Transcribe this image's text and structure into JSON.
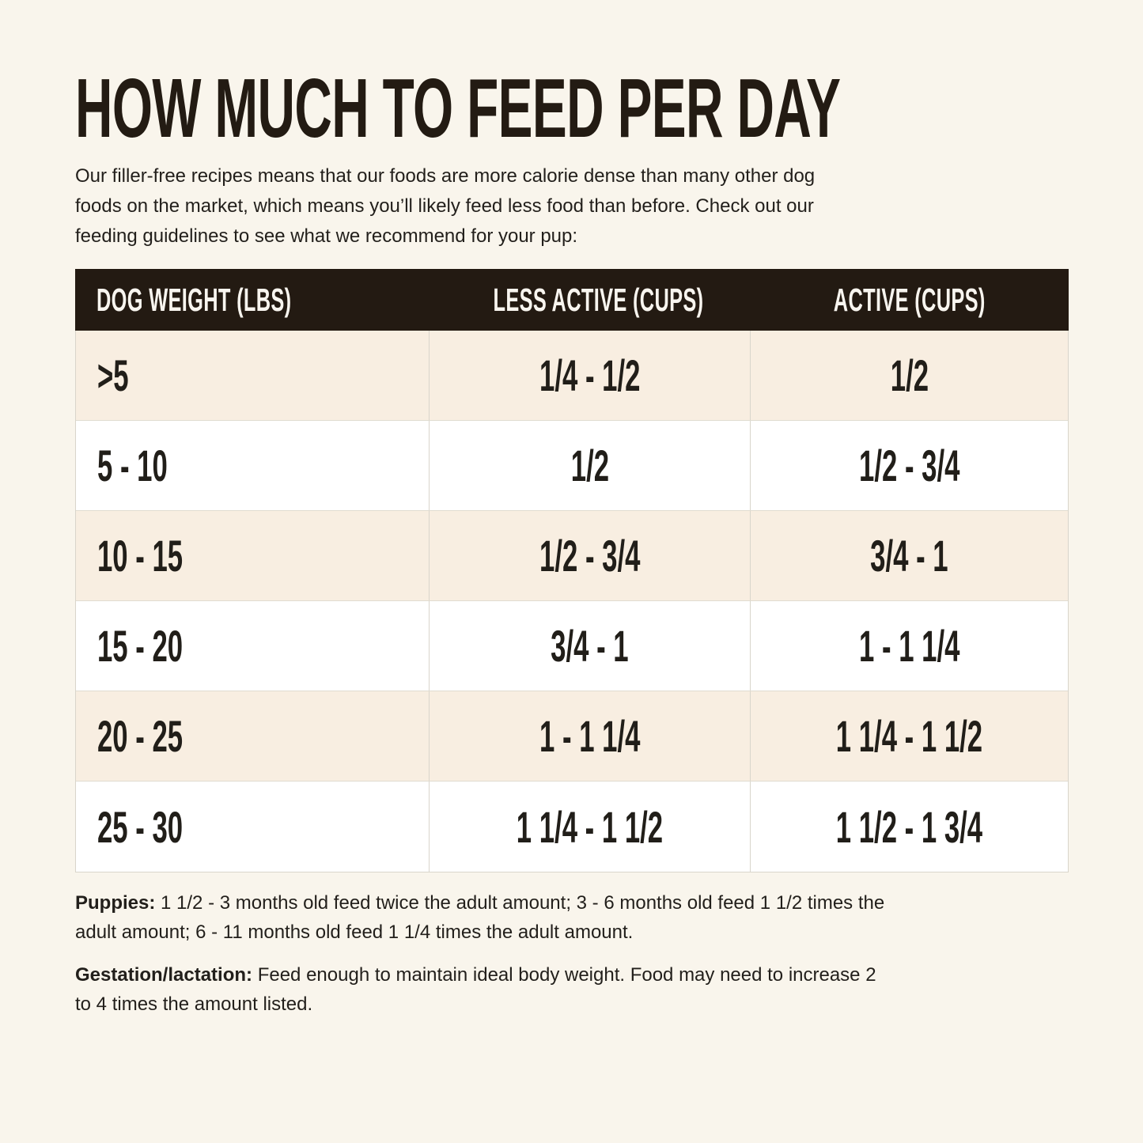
{
  "page": {
    "title": "HOW MUCH TO FEED PER DAY",
    "intro_lines": [
      "Our filler-free recipes means that our foods are more calorie dense than many other dog",
      "foods on the market, which means you’ll likely feed less food than before. Check out our",
      "feeding guidelines to see what we recommend for your pup:"
    ]
  },
  "table": {
    "headers": {
      "weight": "DOG WEIGHT (LBS)",
      "less_active": "LESS ACTIVE (CUPS)",
      "active": "ACTIVE (CUPS)"
    },
    "rows": [
      {
        "weight": ">5",
        "less_active": "1/4 - 1/2",
        "active": "1/2"
      },
      {
        "weight": "5 - 10",
        "less_active": "1/2",
        "active": "1/2 - 3/4"
      },
      {
        "weight": "10 - 15",
        "less_active": "1/2 - 3/4",
        "active": "3/4 - 1"
      },
      {
        "weight": "15 - 20",
        "less_active": "3/4 - 1",
        "active": "1 - 1 1/4"
      },
      {
        "weight": "20 - 25",
        "less_active": "1 - 1 1/4",
        "active": "1 1/4 - 1 1/2"
      },
      {
        "weight": "25 - 30",
        "less_active": "1 1/4 - 1 1/2",
        "active": "1 1/2 - 1 3/4"
      }
    ]
  },
  "notes": [
    {
      "label": "Puppies:",
      "lines": [
        "1 1/2 - 3 months old feed twice the adult amount; 3 - 6 months old feed 1 1/2 times the",
        "adult amount; 6 - 11 months old feed 1 1/4 times the adult amount."
      ]
    },
    {
      "label": "Gestation/lactation:",
      "lines": [
        "Feed enough to maintain ideal body weight. Food may need to increase 2",
        "to 4 times the amount listed."
      ]
    }
  ],
  "colors": {
    "background": "#f9f5ec",
    "header_bg": "#231a12",
    "header_text": "#f8f5ef",
    "row_alt": "#f8eee1",
    "row_plain": "#ffffff",
    "border": "#d9d5cb",
    "text": "#221f1b"
  }
}
